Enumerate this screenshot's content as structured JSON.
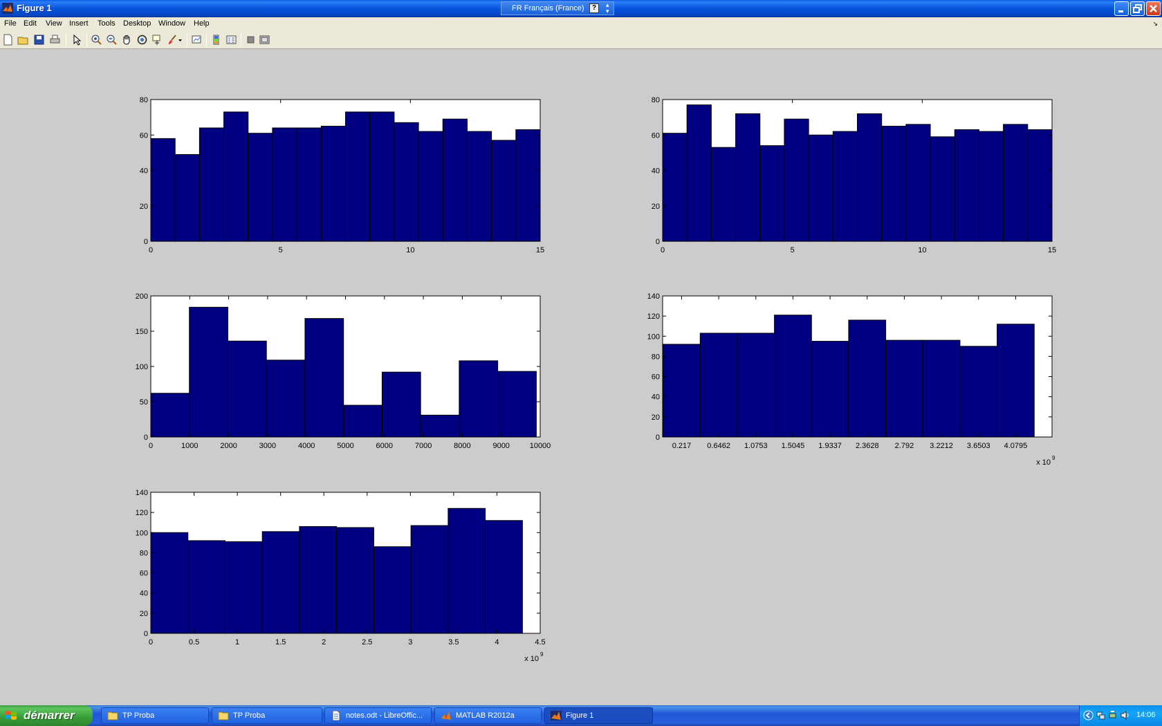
{
  "window": {
    "title": "Figure 1",
    "language_bar": "FR Français (France)",
    "help_badge": "?",
    "controls": [
      "minimize",
      "maximize",
      "close"
    ]
  },
  "menu": [
    "File",
    "Edit",
    "View",
    "Insert",
    "Tools",
    "Desktop",
    "Window",
    "Help"
  ],
  "toolbar": {
    "icons": [
      "new-figure-icon",
      "open-file-icon",
      "save-icon",
      "print-icon",
      "edit-plot-icon",
      "zoom-in-icon",
      "zoom-out-icon",
      "pan-icon",
      "rotate-3d-icon",
      "data-cursor-icon",
      "brush-icon",
      "brush-dropdown-icon",
      "link-plot-icon",
      "colorbar-icon",
      "legend-icon",
      "hide-plot-tools-icon",
      "show-plot-tools-icon"
    ]
  },
  "colors": {
    "bar_fill": "#000080",
    "figure_bg": "#cccccc",
    "axes_bg": "#ffffff"
  },
  "chart_data": [
    {
      "type": "bar",
      "title": "",
      "xlim": [
        0,
        15
      ],
      "ylim": [
        0,
        80
      ],
      "xticks": [
        "0",
        "5",
        "10",
        "15"
      ],
      "xtick_values": [
        0,
        5,
        10,
        15
      ],
      "yticks": [
        "0",
        "20",
        "40",
        "60",
        "80"
      ],
      "ytick_values": [
        0,
        20,
        40,
        60,
        80
      ],
      "bin_edges": [
        0,
        0.9375,
        1.875,
        2.8125,
        3.75,
        4.6875,
        5.625,
        6.5625,
        7.5,
        8.4375,
        9.375,
        10.3125,
        11.25,
        12.1875,
        13.125,
        14.0625,
        15
      ],
      "values": [
        58,
        49,
        64,
        73,
        61,
        64,
        64,
        65,
        73,
        73,
        67,
        62,
        69,
        62,
        57,
        63
      ]
    },
    {
      "type": "bar",
      "title": "",
      "xlim": [
        0,
        15
      ],
      "ylim": [
        0,
        80
      ],
      "xticks": [
        "0",
        "5",
        "10",
        "15"
      ],
      "xtick_values": [
        0,
        5,
        10,
        15
      ],
      "yticks": [
        "0",
        "20",
        "40",
        "60",
        "80"
      ],
      "ytick_values": [
        0,
        20,
        40,
        60,
        80
      ],
      "bin_edges": [
        0,
        0.9375,
        1.875,
        2.8125,
        3.75,
        4.6875,
        5.625,
        6.5625,
        7.5,
        8.4375,
        9.375,
        10.3125,
        11.25,
        12.1875,
        13.125,
        14.0625,
        15
      ],
      "values": [
        61,
        77,
        53,
        72,
        54,
        69,
        60,
        62,
        72,
        65,
        66,
        59,
        63,
        62,
        66,
        63
      ]
    },
    {
      "type": "bar",
      "title": "",
      "xlim": [
        0,
        10000
      ],
      "ylim": [
        0,
        200
      ],
      "xticks": [
        "0",
        "1000",
        "2000",
        "3000",
        "4000",
        "5000",
        "6000",
        "7000",
        "8000",
        "9000",
        "10000"
      ],
      "xtick_values": [
        0,
        1000,
        2000,
        3000,
        4000,
        5000,
        6000,
        7000,
        8000,
        9000,
        10000
      ],
      "yticks": [
        "0",
        "50",
        "100",
        "150",
        "200"
      ],
      "ytick_values": [
        0,
        50,
        100,
        150,
        200
      ],
      "bin_edges": [
        0,
        990,
        1980,
        2970,
        3960,
        4950,
        5940,
        6930,
        7920,
        8910,
        9900
      ],
      "values": [
        62,
        184,
        136,
        109,
        168,
        45,
        92,
        31,
        108,
        93
      ]
    },
    {
      "type": "bar",
      "title": "",
      "xlim": [
        -0.0026,
        4.5
      ],
      "ylim": [
        0,
        140
      ],
      "xticks": [
        "0.217",
        "0.6462",
        "1.0753",
        "1.5045",
        "1.9337",
        "2.3628",
        "2.792",
        "3.2212",
        "3.6503",
        "4.0795"
      ],
      "xtick_values": [
        0.217,
        0.6462,
        1.0753,
        1.5045,
        1.9337,
        2.3628,
        2.792,
        3.2212,
        3.6503,
        4.0795
      ],
      "x_multiplier_base": "x 10",
      "x_multiplier_exponent": "9",
      "yticks": [
        "0",
        "20",
        "40",
        "60",
        "80",
        "100",
        "120",
        "140"
      ],
      "ytick_values": [
        0,
        20,
        40,
        60,
        80,
        100,
        120,
        140
      ],
      "bin_edges": [
        0.0024,
        0.4316,
        0.8608,
        1.2899,
        1.7191,
        2.1483,
        2.5774,
        3.0066,
        3.4358,
        3.8649,
        4.2941
      ],
      "values": [
        92,
        103,
        103,
        121,
        95,
        116,
        96,
        96,
        90,
        112
      ]
    },
    {
      "type": "bar",
      "title": "",
      "xlim": [
        0,
        4.5
      ],
      "ylim": [
        0,
        140
      ],
      "xticks": [
        "0",
        "0.5",
        "1",
        "1.5",
        "2",
        "2.5",
        "3",
        "3.5",
        "4",
        "4.5"
      ],
      "xtick_values": [
        0,
        0.5,
        1,
        1.5,
        2,
        2.5,
        3,
        3.5,
        4,
        4.5
      ],
      "x_multiplier_base": "x 10",
      "x_multiplier_exponent": "9",
      "yticks": [
        "0",
        "20",
        "40",
        "60",
        "80",
        "100",
        "120",
        "140"
      ],
      "ytick_values": [
        0,
        20,
        40,
        60,
        80,
        100,
        120,
        140
      ],
      "bin_edges": [
        0,
        0.4295,
        0.859,
        1.2885,
        1.718,
        2.1475,
        2.577,
        3.0065,
        3.436,
        3.8655,
        4.295
      ],
      "values": [
        100,
        92,
        91,
        101,
        106,
        105,
        86,
        107,
        124,
        112
      ]
    }
  ],
  "taskbar": {
    "start_label": "démarrer",
    "tasks": [
      {
        "label": "TP Proba",
        "icon": "folder-icon"
      },
      {
        "label": "TP Proba",
        "icon": "folder-icon"
      },
      {
        "label": "notes.odt - LibreOffic...",
        "icon": "document-icon"
      },
      {
        "label": "MATLAB  R2012a",
        "icon": "matlab-icon"
      },
      {
        "label": "Figure 1",
        "icon": "matlab-figure-icon"
      }
    ],
    "clock": "14:06"
  }
}
